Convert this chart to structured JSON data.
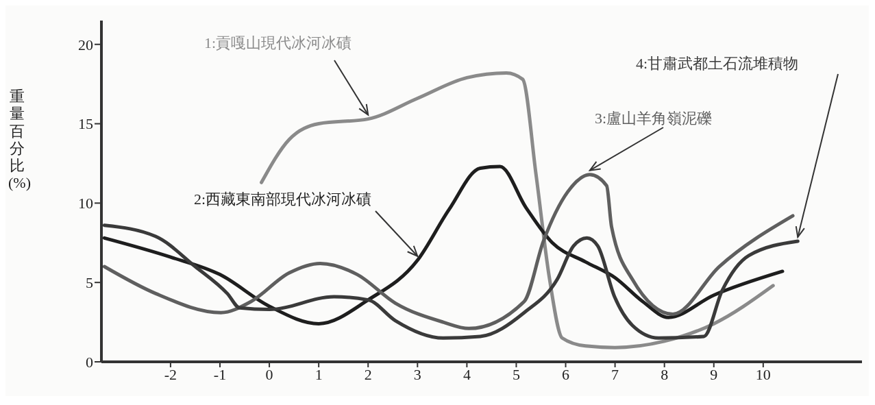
{
  "chart_data": {
    "type": "line",
    "ylabel": "重量百分比(%)",
    "xlim": [
      -3.4,
      12
    ],
    "xticks": [
      -2,
      -1,
      0,
      1,
      2,
      3,
      4,
      5,
      6,
      7,
      8,
      9,
      10
    ],
    "ylim": [
      0,
      21.5
    ],
    "yticks": [
      0,
      5,
      10,
      15,
      20
    ],
    "grid": false,
    "legend": false,
    "marker": "none",
    "line_style": "solid",
    "series": [
      {
        "name": "1:貢嘎山現代冰河冰磧",
        "color": "#8a8a8a",
        "x": [
          -0.16,
          0.4,
          1,
          2,
          3,
          4,
          4.8,
          5.13,
          5.4,
          5.67,
          5.93,
          6.4,
          7,
          8,
          9,
          10.2
        ],
        "values": [
          11.3,
          14,
          15,
          15.3,
          16.6,
          17.9,
          18.2,
          17.8,
          11.8,
          5.3,
          1.5,
          1,
          0.9,
          1.3,
          2.4,
          4.8
        ]
      },
      {
        "name": "2:西藏東南部現代冰河冰磧",
        "color": "#1e1e1e",
        "x": [
          -3.34,
          -2,
          -1,
          0,
          1,
          2,
          3,
          3.64,
          4.27,
          4.67,
          5.2,
          5.73,
          6.4,
          7,
          7.56,
          8.08,
          9,
          10.39
        ],
        "values": [
          7.8,
          6.6,
          5.5,
          3.5,
          2.4,
          3.9,
          6.4,
          9.6,
          12.2,
          12.3,
          9.7,
          7.5,
          6.3,
          5.3,
          3.8,
          2.8,
          4.2,
          5.7
        ]
      },
      {
        "name": "3:盧山羊角嶺泥礫",
        "color": "#5f5f5f",
        "x": [
          -3.34,
          -2.3,
          -0.98,
          -0.37,
          0.4,
          1.03,
          1.78,
          2.55,
          3.52,
          4.04,
          5.16,
          5.55,
          6.04,
          6.49,
          6.83,
          6.93,
          7.35,
          8.17,
          9.11,
          10.6
        ],
        "values": [
          6,
          4.3,
          3.1,
          3.8,
          5.6,
          6.2,
          5.5,
          3.7,
          2.5,
          2.1,
          3.8,
          7.6,
          10.7,
          11.8,
          11.1,
          8.5,
          5.2,
          3,
          6,
          9.2
        ]
      },
      {
        "name": "4:甘肅武都土石流堆積物",
        "color": "#3a3a3a",
        "x": [
          -3.34,
          -2.3,
          -1.5,
          -0.85,
          -0.6,
          0,
          1.31,
          2,
          2.55,
          3.52,
          4.27,
          5.16,
          5.83,
          6.16,
          6.43,
          6.65,
          6.99,
          7.35,
          7.88,
          8.8,
          9.17,
          9.71,
          10.7
        ],
        "values": [
          8.6,
          7.9,
          6,
          4.3,
          3.4,
          3.3,
          4.1,
          3.9,
          2.6,
          1.5,
          1.6,
          3.1,
          5.2,
          7.3,
          7.8,
          7.3,
          4.1,
          2.3,
          1.5,
          1.6,
          4.5,
          6.7,
          7.6
        ]
      }
    ]
  }
}
